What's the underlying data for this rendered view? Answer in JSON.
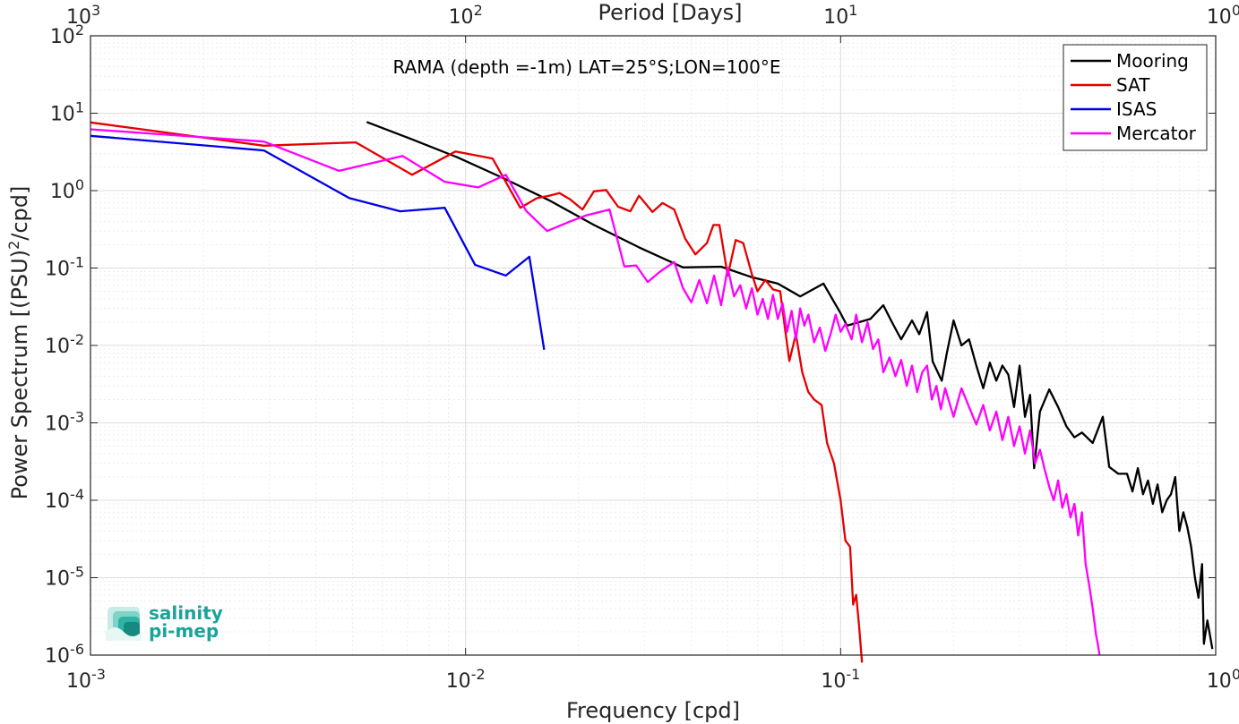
{
  "chart_data": {
    "type": "line",
    "annotation": "RAMA (depth =-1m) LAT=25°S;LON=100°E",
    "xlabel": "Frequency [cpd]",
    "ylabel": "Power Spectrum [(PSU)²/cpd]",
    "top_xlabel": "Period [Days]",
    "x_scale": "log",
    "y_scale": "log",
    "xlim": [
      0.001,
      1
    ],
    "ylim": [
      1e-06,
      100
    ],
    "grid": true,
    "minor_grid": true,
    "legend_position": "top-right",
    "x_ticks": [
      {
        "value": 0.001,
        "base": "10",
        "exp": "-3"
      },
      {
        "value": 0.01,
        "base": "10",
        "exp": "-2"
      },
      {
        "value": 0.1,
        "base": "10",
        "exp": "-1"
      },
      {
        "value": 1,
        "base": "10",
        "exp": "0"
      }
    ],
    "top_ticks": [
      {
        "value": 0.001,
        "base": "10",
        "exp": "3"
      },
      {
        "value": 0.01,
        "base": "10",
        "exp": "2"
      },
      {
        "value": 0.1,
        "base": "10",
        "exp": "1"
      },
      {
        "value": 1,
        "base": "10",
        "exp": "0"
      }
    ],
    "y_ticks": [
      {
        "value": 100,
        "base": "10",
        "exp": "2"
      },
      {
        "value": 10,
        "base": "10",
        "exp": "1"
      },
      {
        "value": 1,
        "base": "10",
        "exp": "0"
      },
      {
        "value": 0.1,
        "base": "10",
        "exp": "-1"
      },
      {
        "value": 0.01,
        "base": "10",
        "exp": "-2"
      },
      {
        "value": 0.001,
        "base": "10",
        "exp": "-3"
      },
      {
        "value": 0.0001,
        "base": "10",
        "exp": "-4"
      },
      {
        "value": 1e-05,
        "base": "10",
        "exp": "-5"
      },
      {
        "value": 1e-06,
        "base": "10",
        "exp": "-6"
      }
    ],
    "series": [
      {
        "name": "Mooring",
        "color": "#000000",
        "points": [
          [
            0.00545,
            7.7
          ],
          [
            0.0072,
            4.6
          ],
          [
            0.0095,
            2.7
          ],
          [
            0.0126,
            1.45
          ],
          [
            0.0167,
            0.75
          ],
          [
            0.022,
            0.36
          ],
          [
            0.029,
            0.185
          ],
          [
            0.038,
            0.102
          ],
          [
            0.048,
            0.104
          ],
          [
            0.058,
            0.076
          ],
          [
            0.068,
            0.063
          ],
          [
            0.078,
            0.043
          ],
          [
            0.09,
            0.063
          ],
          [
            0.1,
            0.026
          ],
          [
            0.104,
            0.018
          ],
          [
            0.112,
            0.02
          ],
          [
            0.12,
            0.022
          ],
          [
            0.13,
            0.033
          ],
          [
            0.137,
            0.02
          ],
          [
            0.145,
            0.012
          ],
          [
            0.155,
            0.021
          ],
          [
            0.162,
            0.014
          ],
          [
            0.17,
            0.027
          ],
          [
            0.176,
            0.0062
          ],
          [
            0.186,
            0.0035
          ],
          [
            0.192,
            0.008
          ],
          [
            0.2,
            0.021
          ],
          [
            0.21,
            0.01
          ],
          [
            0.22,
            0.012
          ],
          [
            0.23,
            0.0055
          ],
          [
            0.24,
            0.0028
          ],
          [
            0.25,
            0.006
          ],
          [
            0.26,
            0.0035
          ],
          [
            0.27,
            0.0055
          ],
          [
            0.28,
            0.0042
          ],
          [
            0.29,
            0.0016
          ],
          [
            0.3,
            0.0055
          ],
          [
            0.31,
            0.0012
          ],
          [
            0.32,
            0.0023
          ],
          [
            0.328,
            0.00026
          ],
          [
            0.34,
            0.0014
          ],
          [
            0.36,
            0.0027
          ],
          [
            0.38,
            0.0016
          ],
          [
            0.4,
            0.0009
          ],
          [
            0.42,
            0.00065
          ],
          [
            0.44,
            0.00075
          ],
          [
            0.47,
            0.00055
          ],
          [
            0.5,
            0.0012
          ],
          [
            0.52,
            0.00027
          ],
          [
            0.55,
            0.00022
          ],
          [
            0.58,
            0.00022
          ],
          [
            0.6,
            0.00013
          ],
          [
            0.62,
            0.00026
          ],
          [
            0.64,
            0.00012
          ],
          [
            0.66,
            0.00018
          ],
          [
            0.68,
            9e-05
          ],
          [
            0.7,
            0.00016
          ],
          [
            0.72,
            7e-05
          ],
          [
            0.74,
            0.0001
          ],
          [
            0.76,
            0.00012
          ],
          [
            0.78,
            0.0002
          ],
          [
            0.8,
            4e-05
          ],
          [
            0.82,
            7e-05
          ],
          [
            0.84,
            4.5e-05
          ],
          [
            0.86,
            2.5e-05
          ],
          [
            0.88,
            1e-05
          ],
          [
            0.9,
            5.5e-06
          ],
          [
            0.92,
            1.5e-05
          ],
          [
            0.93,
            1.4e-06
          ],
          [
            0.95,
            2.8e-06
          ],
          [
            0.98,
            1.2e-06
          ]
        ]
      },
      {
        "name": "SAT",
        "color": "#e60000",
        "points": [
          [
            0.001,
            7.6
          ],
          [
            0.0029,
            3.8
          ],
          [
            0.0051,
            4.2
          ],
          [
            0.0072,
            1.6
          ],
          [
            0.0094,
            3.2
          ],
          [
            0.0118,
            2.6
          ],
          [
            0.014,
            0.6
          ],
          [
            0.0155,
            0.8
          ],
          [
            0.0167,
            0.86
          ],
          [
            0.0178,
            0.93
          ],
          [
            0.019,
            0.77
          ],
          [
            0.0205,
            0.57
          ],
          [
            0.022,
            0.98
          ],
          [
            0.0237,
            1.02
          ],
          [
            0.0255,
            0.62
          ],
          [
            0.0275,
            0.54
          ],
          [
            0.029,
            0.86
          ],
          [
            0.0315,
            0.53
          ],
          [
            0.0335,
            0.69
          ],
          [
            0.036,
            0.57
          ],
          [
            0.0385,
            0.24
          ],
          [
            0.041,
            0.15
          ],
          [
            0.044,
            0.21
          ],
          [
            0.0458,
            0.36
          ],
          [
            0.0475,
            0.36
          ],
          [
            0.05,
            0.08
          ],
          [
            0.0525,
            0.23
          ],
          [
            0.055,
            0.21
          ],
          [
            0.058,
            0.083
          ],
          [
            0.06,
            0.05
          ],
          [
            0.063,
            0.07
          ],
          [
            0.066,
            0.053
          ],
          [
            0.069,
            0.05
          ],
          [
            0.071,
            0.017
          ],
          [
            0.073,
            0.0063
          ],
          [
            0.076,
            0.014
          ],
          [
            0.079,
            0.0045
          ],
          [
            0.082,
            0.0025
          ],
          [
            0.085,
            0.002
          ],
          [
            0.089,
            0.0017
          ],
          [
            0.092,
            0.00055
          ],
          [
            0.096,
            0.0003
          ],
          [
            0.1,
            0.0001
          ],
          [
            0.103,
            3e-05
          ],
          [
            0.106,
            2.5e-05
          ],
          [
            0.108,
            4.5e-06
          ],
          [
            0.11,
            6e-06
          ],
          [
            0.112,
            2.4e-06
          ],
          [
            0.114,
            8e-07
          ]
        ]
      },
      {
        "name": "ISAS",
        "color": "#0000e6",
        "points": [
          [
            0.001,
            5.1
          ],
          [
            0.0029,
            3.3
          ],
          [
            0.0049,
            0.8
          ],
          [
            0.0067,
            0.54
          ],
          [
            0.0088,
            0.6
          ],
          [
            0.0106,
            0.11
          ],
          [
            0.0128,
            0.08
          ],
          [
            0.0148,
            0.14
          ],
          [
            0.0162,
            0.0088
          ]
        ]
      },
      {
        "name": "Mercator",
        "color": "#ff00ff",
        "points": [
          [
            0.001,
            6.2
          ],
          [
            0.0029,
            4.3
          ],
          [
            0.0046,
            1.8
          ],
          [
            0.0068,
            2.8
          ],
          [
            0.0088,
            1.3
          ],
          [
            0.0108,
            1.1
          ],
          [
            0.0128,
            1.6
          ],
          [
            0.0145,
            0.55
          ],
          [
            0.0165,
            0.3
          ],
          [
            0.019,
            0.4
          ],
          [
            0.021,
            0.48
          ],
          [
            0.0242,
            0.57
          ],
          [
            0.0265,
            0.105
          ],
          [
            0.0285,
            0.108
          ],
          [
            0.0306,
            0.066
          ],
          [
            0.033,
            0.09
          ],
          [
            0.036,
            0.12
          ],
          [
            0.038,
            0.055
          ],
          [
            0.04,
            0.036
          ],
          [
            0.042,
            0.07
          ],
          [
            0.044,
            0.035
          ],
          [
            0.046,
            0.08
          ],
          [
            0.048,
            0.033
          ],
          [
            0.05,
            0.1
          ],
          [
            0.052,
            0.043
          ],
          [
            0.054,
            0.06
          ],
          [
            0.056,
            0.03
          ],
          [
            0.058,
            0.055
          ],
          [
            0.06,
            0.025
          ],
          [
            0.062,
            0.04
          ],
          [
            0.064,
            0.022
          ],
          [
            0.066,
            0.045
          ],
          [
            0.068,
            0.022
          ],
          [
            0.07,
            0.035
          ],
          [
            0.072,
            0.015
          ],
          [
            0.074,
            0.028
          ],
          [
            0.076,
            0.012
          ],
          [
            0.078,
            0.03
          ],
          [
            0.08,
            0.018
          ],
          [
            0.082,
            0.025
          ],
          [
            0.085,
            0.011
          ],
          [
            0.088,
            0.017
          ],
          [
            0.091,
            0.0085
          ],
          [
            0.094,
            0.014
          ],
          [
            0.097,
            0.025
          ],
          [
            0.1,
            0.015
          ],
          [
            0.103,
            0.019
          ],
          [
            0.107,
            0.012
          ],
          [
            0.11,
            0.025
          ],
          [
            0.114,
            0.011
          ],
          [
            0.118,
            0.02
          ],
          [
            0.122,
            0.009
          ],
          [
            0.126,
            0.012
          ],
          [
            0.13,
            0.0045
          ],
          [
            0.135,
            0.007
          ],
          [
            0.14,
            0.004
          ],
          [
            0.145,
            0.0065
          ],
          [
            0.15,
            0.003
          ],
          [
            0.155,
            0.0055
          ],
          [
            0.16,
            0.0025
          ],
          [
            0.165,
            0.0045
          ],
          [
            0.17,
            0.0055
          ],
          [
            0.175,
            0.002
          ],
          [
            0.18,
            0.003
          ],
          [
            0.185,
            0.0015
          ],
          [
            0.19,
            0.0028
          ],
          [
            0.2,
            0.0012
          ],
          [
            0.21,
            0.0028
          ],
          [
            0.22,
            0.0016
          ],
          [
            0.23,
            0.00095
          ],
          [
            0.24,
            0.0017
          ],
          [
            0.25,
            0.0008
          ],
          [
            0.26,
            0.0014
          ],
          [
            0.27,
            0.0006
          ],
          [
            0.28,
            0.0012
          ],
          [
            0.29,
            0.0005
          ],
          [
            0.3,
            0.0009
          ],
          [
            0.31,
            0.0004
          ],
          [
            0.32,
            0.0008
          ],
          [
            0.33,
            0.0003
          ],
          [
            0.34,
            0.00045
          ],
          [
            0.35,
            0.00025
          ],
          [
            0.36,
            0.00015
          ],
          [
            0.37,
            0.0001
          ],
          [
            0.38,
            0.00018
          ],
          [
            0.39,
            8e-05
          ],
          [
            0.4,
            0.00012
          ],
          [
            0.41,
            6e-05
          ],
          [
            0.42,
            9e-05
          ],
          [
            0.43,
            3.5e-05
          ],
          [
            0.44,
            7e-05
          ],
          [
            0.45,
            1.5e-05
          ],
          [
            0.46,
            8e-06
          ],
          [
            0.47,
            4e-06
          ],
          [
            0.48,
            1.8e-06
          ],
          [
            0.485,
            1.4e-06
          ],
          [
            0.49,
            1e-06
          ]
        ]
      }
    ]
  },
  "logo": {
    "line1": "salinity",
    "line2": "pi-mep"
  }
}
